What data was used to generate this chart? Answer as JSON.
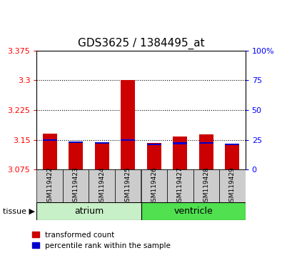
{
  "title": "GDS3625 / 1384495_at",
  "samples": [
    "GSM119422",
    "GSM119423",
    "GSM119424",
    "GSM119425",
    "GSM119426",
    "GSM119427",
    "GSM119428",
    "GSM119429"
  ],
  "red_values": [
    3.165,
    3.143,
    3.141,
    3.3,
    3.142,
    3.158,
    3.163,
    3.14
  ],
  "blue_bottoms": [
    3.147,
    3.142,
    3.14,
    3.147,
    3.137,
    3.139,
    3.14,
    3.137
  ],
  "blue_tops": [
    3.151,
    3.146,
    3.144,
    3.151,
    3.141,
    3.143,
    3.144,
    3.141
  ],
  "ymin": 3.075,
  "ymax": 3.375,
  "yticks": [
    3.075,
    3.15,
    3.225,
    3.3,
    3.375
  ],
  "ytick_labels": [
    "3.075",
    "3.15",
    "3.225",
    "3.3",
    "3.375"
  ],
  "right_yticks": [
    0,
    25,
    50,
    75,
    100
  ],
  "right_ytick_labels": [
    "0",
    "25",
    "50",
    "75",
    "100%"
  ],
  "atrium_color": "#c8f0c8",
  "ventricle_color": "#50e050",
  "tissue_label": "tissue",
  "bar_width": 0.55,
  "red_color": "#cc0000",
  "blue_color": "#0000cc",
  "sample_bg_color": "#cccccc",
  "legend_items": [
    "transformed count",
    "percentile rank within the sample"
  ],
  "title_fontsize": 11,
  "tick_fontsize": 8,
  "sample_fontsize": 6.5,
  "group_fontsize": 9
}
